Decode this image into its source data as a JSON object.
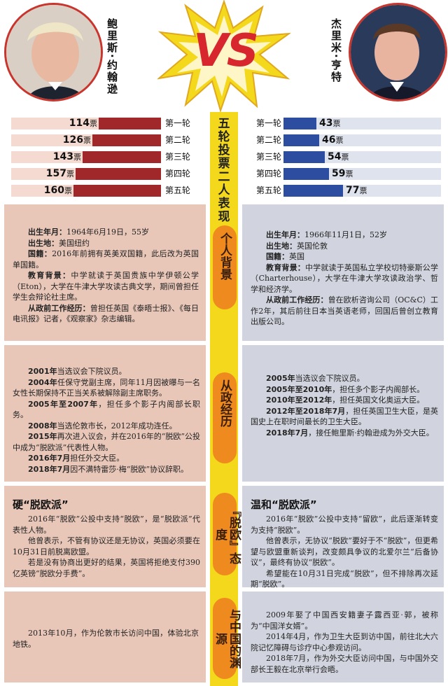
{
  "header": {
    "left_name": "鲍里斯·约翰逊",
    "right_name": "杰里米·亨特",
    "vs": "VS",
    "vote_title": "五轮投票二人表现"
  },
  "chart_data": {
    "type": "bar",
    "categories": [
      "第一轮",
      "第二轮",
      "第三轮",
      "第四轮",
      "第五轮"
    ],
    "unit": "票",
    "series": [
      {
        "name": "鲍里斯·约翰逊",
        "values": [
          114,
          126,
          143,
          157,
          160
        ],
        "color": "#a0282a"
      },
      {
        "name": "杰里米·亨特",
        "values": [
          43,
          46,
          54,
          59,
          77
        ],
        "color": "#2d4ea0"
      }
    ]
  },
  "sections": {
    "personal": {
      "label": "个人背景",
      "left": [
        {
          "k": "出生年月：",
          "v": "1964年6月19日，55岁"
        },
        {
          "k": "出生地：",
          "v": "美国纽约"
        },
        {
          "k": "国籍：",
          "v": "2016年前拥有英美双国籍，此后改为英国单国籍。"
        },
        {
          "k": "教育背景：",
          "v": "中学就读于英国贵族中学伊顿公学（Eton），大学在牛津大学攻读古典文学，期间曾担任学生会辩论社主席。"
        },
        {
          "k": "从政前工作经历：",
          "v": "曾担任英国《泰晤士报》、《每日电讯报》记者，《观察家》杂志编辑。"
        }
      ],
      "right": [
        {
          "k": "出生年月：",
          "v": "1966年11月1日，52岁"
        },
        {
          "k": "出生地：",
          "v": "英国伦敦"
        },
        {
          "k": "国籍：",
          "v": "英国"
        },
        {
          "k": "教育背景：",
          "v": "中学就读于英国私立学校切特豪斯公学（Charterhouse），大学在牛津大学攻读政治学、哲学和经济学。"
        },
        {
          "k": "从政前工作经历：",
          "v": "曾在欧析咨询公司（OC&C）工作2年，其后前往日本当英语老师，回国后曾创立教育出版公司。"
        }
      ]
    },
    "career": {
      "label": "从政经历",
      "left": [
        {
          "k": "2001年",
          "v": "当选议会下院议员。"
        },
        {
          "k": "2004年",
          "v": "任保守党副主席，同年11月因被曝与一名女性长期保持不正当关系被解除副主席职务。"
        },
        {
          "k": "2005年至2007年",
          "v": "，担任多个影子内阁部长职务。"
        },
        {
          "k": "2008年",
          "v": "当选伦敦市长，2012年成功连任。"
        },
        {
          "k": "2015年",
          "v": "再次进入议会，并在2016年的“脱欧”公投中成为“脱欧派”代表性人物。"
        },
        {
          "k": "2016年7月",
          "v": "担任外交大臣。"
        },
        {
          "k": "2018年7月",
          "v": "因不满特雷莎·梅“脱欧”协议辞职。"
        }
      ],
      "right": [
        {
          "k": "2005年",
          "v": "当选议会下院议员。"
        },
        {
          "k": "2005年至2010年",
          "v": "，担任多个影子内阁部长。"
        },
        {
          "k": "2010年至2012年",
          "v": "，担任英国文化奥运大臣。"
        },
        {
          "k": "2012年至2018年7月",
          "v": "，担任英国卫生大臣，是英国史上在职时间最长的卫生大臣。"
        },
        {
          "k": "2018年7月",
          "v": "，接任鲍里斯·约翰逊成为外交大臣。"
        }
      ]
    },
    "brexit": {
      "label": "『脱欧』态度",
      "left_title": "硬“脱欧派”",
      "left": [
        "2016年“脱欧”公投中支持“脱欧”，是“脱欧派”代表性人物。",
        "他曾表示，不管有协议还是无协议，英国必须要在10月31日前脱离欧盟。",
        "若是没有协商出更好的结果，英国将拒绝支付390亿英镑“脱欧分手费”。"
      ],
      "right_title": "温和“脱欧派”",
      "right": [
        "2016年“脱欧”公投中支持“留欧”，此后逐渐转变为支持“脱欧”。",
        "他曾表示，无协议“脱欧”要好于不“脱欧”，但更希望与欧盟重新谈判，改变颇具争议的北爱尔兰“后备协议”，最终有协议“脱欧”。",
        "希望能在10月31日完成“脱欧”，但不排除再次延期“脱欧”。"
      ]
    },
    "china": {
      "label": "与中国的渊源",
      "left": [
        "2013年10月，作为伦敦市长访问中国，体验北京地铁。"
      ],
      "right": [
        "2009年娶了中国西安籍妻子露西亚·郭，被称为“中国洋女婿”。",
        "2014年4月，作为卫生大臣到访中国，前往北大六院记忆障碍与诊疗中心参观访问。",
        "2018年7月，作为外交大臣访问中国，与中国外交部长王毅在北京举行会晤。"
      ]
    }
  }
}
